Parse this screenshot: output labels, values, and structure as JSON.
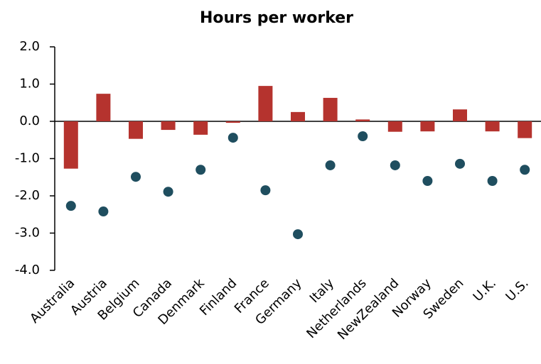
{
  "chart_data": {
    "type": "bar",
    "title": "Hours per worker",
    "categories": [
      "Australia",
      "Austria",
      "Belgium",
      "Canada",
      "Denmark",
      "Finland",
      "France",
      "Germany",
      "Italy",
      "Netherlands",
      "NewZealand",
      "Norway",
      "Sweden",
      "U.K.",
      "U.S."
    ],
    "series": [
      {
        "type": "bar",
        "color": "#b5332e",
        "values": [
          -1.27,
          0.74,
          -0.47,
          -0.23,
          -0.36,
          -0.04,
          0.95,
          0.25,
          0.63,
          0.05,
          -0.28,
          -0.27,
          0.32,
          -0.27,
          -0.45
        ]
      },
      {
        "type": "dot",
        "color": "#1f4e5f",
        "values": [
          -2.27,
          -2.42,
          -1.49,
          -1.89,
          -1.3,
          -0.44,
          -1.85,
          -3.03,
          -1.18,
          -0.4,
          -1.18,
          -1.6,
          -1.14,
          -1.6,
          -1.3
        ]
      }
    ],
    "ylim": [
      -4,
      2
    ],
    "yticks": [
      {
        "value": -4,
        "label": "-4.0"
      },
      {
        "value": -3,
        "label": "-3.0"
      },
      {
        "value": -2,
        "label": "-2.0"
      },
      {
        "value": -1,
        "label": "-1.0"
      },
      {
        "value": 0,
        "label": "0.0"
      },
      {
        "value": 1,
        "label": "1.0"
      },
      {
        "value": 2,
        "label": "2.0"
      }
    ],
    "grid": false
  }
}
